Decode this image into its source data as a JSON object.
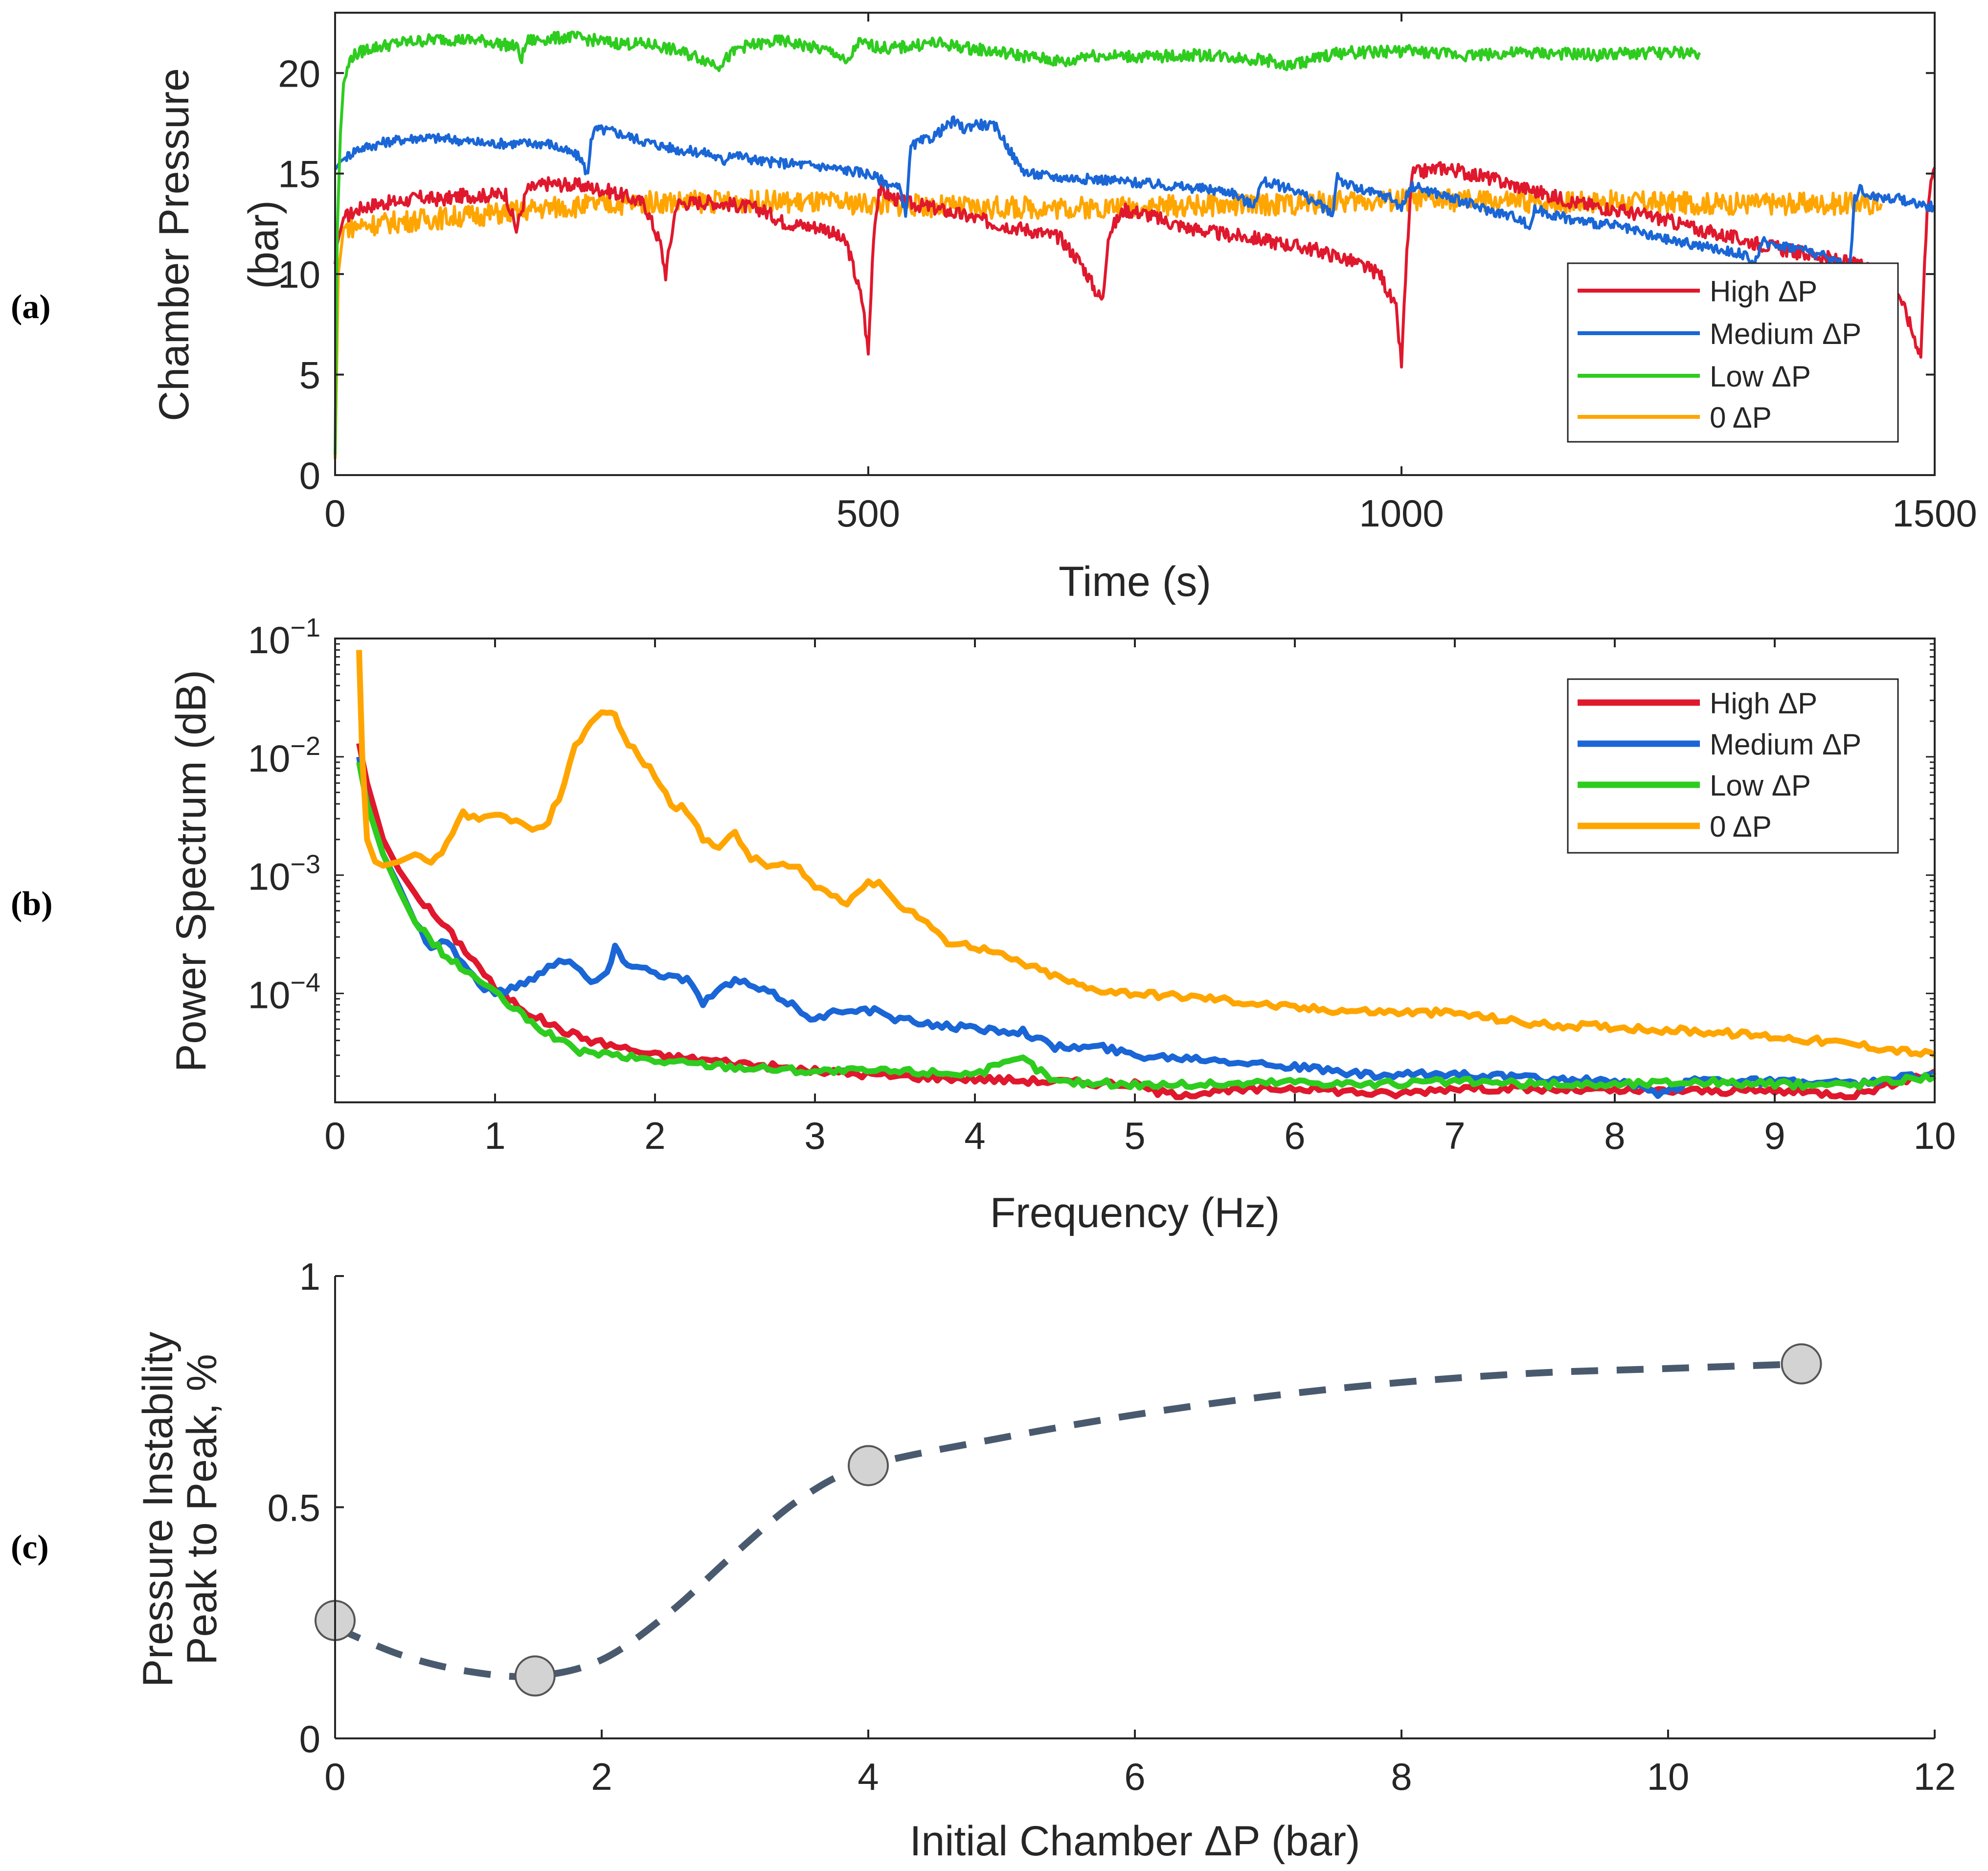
{
  "figure": {
    "panel_labels": [
      "(a)",
      "(b)",
      "(c)"
    ]
  },
  "colors": {
    "high": "#e0182d",
    "medium": "#1a66d6",
    "low": "#2ecc1f",
    "zero": "#ffa500",
    "fit": "#4a5a6e",
    "marker": "#d3d3d3"
  },
  "chart_data": [
    {
      "panel": "(a)",
      "type": "line",
      "xlabel": "Time (s)",
      "ylabel_lines": [
        "Chamber Pressure",
        "(bar)"
      ],
      "xlim": [
        0,
        1500
      ],
      "ylim": [
        0,
        23
      ],
      "xticks": [
        0,
        500,
        1000,
        1500
      ],
      "yticks": [
        0,
        5,
        10,
        15,
        20
      ],
      "legend": {
        "placement": "bottom-right",
        "entries": [
          "High ΔP",
          "Medium ΔP",
          "Low ΔP",
          "0 ΔP"
        ]
      },
      "series": [
        {
          "name": "High ΔP",
          "color_key": "high",
          "noise": 0.35,
          "x": [
            0,
            2,
            8,
            15,
            25,
            40,
            60,
            80,
            100,
            120,
            140,
            160,
            170,
            180,
            200,
            230,
            260,
            290,
            305,
            310,
            320,
            350,
            380,
            400,
            420,
            440,
            460,
            480,
            495,
            500,
            505,
            510,
            530,
            560,
            590,
            620,
            650,
            680,
            700,
            715,
            720,
            725,
            740,
            760,
            780,
            800,
            830,
            860,
            890,
            920,
            950,
            980,
            995,
            1000,
            1005,
            1010,
            1040,
            1080,
            1120,
            1160,
            1200,
            1240,
            1280,
            1320,
            1360,
            1400,
            1430,
            1460,
            1480,
            1487,
            1493,
            1500
          ],
          "y": [
            10.5,
            11.5,
            12.8,
            13.0,
            13.3,
            13.5,
            13.6,
            13.8,
            13.7,
            13.9,
            13.9,
            14.0,
            12.2,
            14.2,
            14.5,
            14.4,
            14.1,
            13.5,
            11.5,
            10.0,
            13.5,
            13.6,
            13.4,
            13.2,
            12.6,
            12.4,
            12.3,
            11.5,
            8.5,
            6.0,
            12.0,
            14.2,
            13.6,
            13.3,
            12.9,
            12.5,
            12.2,
            11.8,
            10.5,
            9.0,
            8.7,
            12.0,
            13.2,
            13.0,
            12.6,
            12.3,
            12.0,
            11.8,
            11.5,
            11.2,
            10.7,
            10.0,
            8.2,
            5.5,
            11.0,
            15.0,
            15.3,
            14.8,
            14.2,
            13.6,
            13.2,
            12.8,
            12.2,
            11.7,
            11.2,
            10.8,
            10.4,
            10.0,
            7.0,
            6.0,
            13.5,
            15.3
          ]
        },
        {
          "name": "Medium ΔP",
          "color_key": "medium",
          "noise": 0.25,
          "x": [
            0,
            5,
            20,
            50,
            80,
            110,
            140,
            170,
            200,
            230,
            237,
            240,
            245,
            260,
            290,
            320,
            350,
            365,
            370,
            400,
            450,
            500,
            530,
            535,
            540,
            545,
            560,
            580,
            590,
            600,
            620,
            640,
            645,
            650,
            680,
            720,
            760,
            800,
            840,
            860,
            870,
            900,
            930,
            935,
            940,
            945,
            960,
            990,
            1000,
            1010,
            1040,
            1080,
            1110,
            1120,
            1125,
            1160,
            1200,
            1220,
            1240,
            1270,
            1300,
            1320,
            1330,
            1340,
            1350,
            1380,
            1410,
            1420,
            1425,
            1430,
            1440,
            1470,
            1500
          ],
          "y": [
            15.2,
            15.6,
            16.2,
            16.6,
            16.8,
            16.7,
            16.5,
            16.5,
            16.5,
            15.8,
            14.9,
            16.8,
            17.2,
            17.1,
            16.6,
            16.2,
            16.0,
            15.6,
            16.0,
            15.6,
            15.4,
            15.0,
            14.2,
            13.0,
            16.3,
            16.5,
            16.8,
            17.6,
            17.2,
            17.5,
            17.3,
            15.5,
            15.2,
            15.0,
            14.8,
            14.7,
            14.5,
            14.3,
            14.1,
            13.4,
            14.6,
            14.2,
            13.2,
            12.8,
            15.0,
            14.6,
            14.2,
            13.8,
            13.3,
            14.4,
            13.9,
            13.2,
            12.8,
            12.3,
            13.2,
            12.7,
            12.4,
            12.1,
            11.8,
            11.5,
            11.2,
            11.0,
            10.5,
            11.6,
            11.5,
            11.2,
            10.6,
            10.1,
            13.8,
            14.2,
            13.9,
            13.7,
            13.3
          ]
        },
        {
          "name": "Low ΔP",
          "color_key": "low",
          "noise": 0.3,
          "x": [
            0,
            2,
            5,
            8,
            15,
            30,
            60,
            100,
            140,
            170,
            175,
            180,
            220,
            260,
            300,
            340,
            360,
            380,
            420,
            470,
            480,
            490,
            520,
            560,
            600,
            640,
            690,
            700,
            760,
            820,
            880,
            890,
            940,
            1000,
            1060,
            1120,
            1180,
            1230,
            1280
          ],
          "y": [
            1.0,
            12.0,
            17.0,
            19.5,
            20.8,
            21.2,
            21.5,
            21.7,
            21.6,
            21.3,
            20.7,
            21.6,
            21.8,
            21.5,
            21.4,
            20.8,
            20.4,
            21.3,
            21.6,
            21.0,
            20.4,
            21.5,
            21.2,
            21.5,
            21.2,
            20.9,
            20.5,
            20.9,
            20.8,
            20.9,
            20.6,
            20.3,
            21.0,
            21.1,
            20.9,
            21.0,
            20.9,
            21.0,
            21.0
          ]
        },
        {
          "name": "0 ΔP",
          "color_key": "zero",
          "noise": 0.55,
          "x": [
            0,
            3,
            8,
            20,
            60,
            100,
            150,
            200,
            300,
            400,
            500,
            600,
            700,
            800,
            900,
            1000,
            1100,
            1200,
            1300,
            1400,
            1450
          ],
          "y": [
            0.8,
            10.0,
            12.3,
            12.4,
            12.6,
            12.8,
            13.0,
            13.3,
            13.6,
            13.6,
            13.5,
            13.3,
            13.3,
            13.4,
            13.5,
            13.7,
            13.6,
            13.6,
            13.5,
            13.5,
            13.5
          ]
        }
      ]
    },
    {
      "panel": "(b)",
      "type": "line",
      "yscale": "log",
      "xlabel": "Frequency (Hz)",
      "ylabel": "Power Spectrum (dB)",
      "xlim": [
        0,
        10
      ],
      "ylim": [
        1.2e-05,
        0.1
      ],
      "xticks": [
        0,
        1,
        2,
        3,
        4,
        5,
        6,
        7,
        8,
        9,
        10
      ],
      "yticks": [
        0.0001,
        0.001,
        0.01,
        0.1
      ],
      "ytick_bases": [
        "10",
        "10",
        "10",
        "10"
      ],
      "ytick_exps": [
        "−4",
        "−3",
        "−2",
        "−1"
      ],
      "legend": {
        "placement": "top-right",
        "entries": [
          "High ΔP",
          "Medium ΔP",
          "Low ΔP",
          "0 ΔP"
        ]
      },
      "series": [
        {
          "name": "High ΔP",
          "color_key": "high",
          "x": [
            0.15,
            0.2,
            0.3,
            0.4,
            0.5,
            0.7,
            0.9,
            1.0,
            1.2,
            1.4,
            1.6,
            2.0,
            2.5,
            3.0,
            3.5,
            4.0,
            5.0,
            5.2,
            6.0,
            6.6,
            7.0,
            8.0,
            9.0,
            9.5,
            10.0
          ],
          "y": [
            0.013,
            0.006,
            0.002,
            0.0011,
            0.0007,
            0.00035,
            0.00017,
            0.00011,
            7e-05,
            5e-05,
            4e-05,
            3e-05,
            2.6e-05,
            2.2e-05,
            2e-05,
            1.9e-05,
            1.7e-05,
            1.4e-05,
            1.6e-05,
            1.4e-05,
            1.6e-05,
            1.5e-05,
            1.5e-05,
            1.4e-05,
            2.2e-05
          ]
        },
        {
          "name": "Medium ΔP",
          "color_key": "medium",
          "x": [
            0.15,
            0.2,
            0.3,
            0.4,
            0.5,
            0.6,
            0.7,
            0.8,
            0.9,
            1.0,
            1.1,
            1.3,
            1.4,
            1.5,
            1.6,
            1.7,
            1.75,
            1.8,
            2.0,
            2.2,
            2.3,
            2.5,
            2.8,
            3.0,
            3.2,
            3.4,
            3.5,
            4.0,
            4.3,
            4.5,
            4.8,
            5.0,
            5.5,
            6.0,
            6.5,
            7.0,
            7.5,
            8.0,
            8.3,
            8.5,
            9.0,
            9.5,
            10.0
          ],
          "y": [
            0.01,
            0.004,
            0.0015,
            0.0008,
            0.0004,
            0.00025,
            0.00028,
            0.00018,
            0.00012,
            0.0001,
            0.00011,
            0.00015,
            0.0002,
            0.00018,
            0.00012,
            0.00015,
            0.00024,
            0.00019,
            0.00015,
            0.00013,
            8.5e-05,
            0.00013,
            9e-05,
            6e-05,
            7.5e-05,
            7e-05,
            6e-05,
            5e-05,
            4.8e-05,
            3.5e-05,
            3.5e-05,
            3e-05,
            2.8e-05,
            2.4e-05,
            2e-05,
            2.1e-05,
            1.9e-05,
            1.8e-05,
            1.4e-05,
            1.9e-05,
            1.8e-05,
            1.7e-05,
            2.1e-05
          ]
        },
        {
          "name": "Low ΔP",
          "color_key": "low",
          "x": [
            0.15,
            0.2,
            0.3,
            0.4,
            0.5,
            0.7,
            0.9,
            1.0,
            1.2,
            1.4,
            1.5,
            2.0,
            2.5,
            3.0,
            3.5,
            4.0,
            4.3,
            4.5,
            5.0,
            5.5,
            6.0,
            6.5,
            7.0,
            7.5,
            8.0,
            8.5,
            9.0,
            9.5,
            10.0
          ],
          "y": [
            0.009,
            0.004,
            0.0015,
            0.00075,
            0.0004,
            0.0002,
            0.00013,
            0.0001,
            6e-05,
            4e-05,
            3.3e-05,
            2.7e-05,
            2.4e-05,
            2.2e-05,
            2.2e-05,
            2.1e-05,
            2.8e-05,
            1.8e-05,
            1.7e-05,
            1.7e-05,
            1.8e-05,
            1.7e-05,
            1.8e-05,
            1.7e-05,
            1.7e-05,
            1.8e-05,
            1.7e-05,
            1.7e-05,
            2e-05
          ]
        },
        {
          "name": "0 ΔP",
          "color_key": "zero",
          "x": [
            0.15,
            0.17,
            0.2,
            0.25,
            0.3,
            0.4,
            0.5,
            0.6,
            0.7,
            0.8,
            0.9,
            1.0,
            1.1,
            1.2,
            1.3,
            1.4,
            1.5,
            1.6,
            1.7,
            1.75,
            1.8,
            1.9,
            2.0,
            2.1,
            2.2,
            2.3,
            2.4,
            2.5,
            2.6,
            2.7,
            2.8,
            2.9,
            3.0,
            3.1,
            3.2,
            3.3,
            3.4,
            3.5,
            3.7,
            3.8,
            4.0,
            4.2,
            4.5,
            4.7,
            5.0,
            5.5,
            6.0,
            6.5,
            7.0,
            7.5,
            8.0,
            8.5,
            9.0,
            9.5,
            10.0
          ],
          "y": [
            0.08,
            0.01,
            0.002,
            0.0013,
            0.0012,
            0.0013,
            0.0015,
            0.0012,
            0.0018,
            0.0035,
            0.0028,
            0.0032,
            0.003,
            0.0025,
            0.0024,
            0.0045,
            0.012,
            0.02,
            0.025,
            0.022,
            0.015,
            0.01,
            0.007,
            0.004,
            0.0035,
            0.002,
            0.0018,
            0.0022,
            0.0014,
            0.0012,
            0.0012,
            0.0011,
            0.0008,
            0.0007,
            0.0006,
            0.0008,
            0.0009,
            0.0006,
            0.0004,
            0.00028,
            0.00025,
            0.0002,
            0.00014,
            0.00011,
            0.0001,
            9e-05,
            7.5e-05,
            7e-05,
            6.8e-05,
            5.5e-05,
            5.2e-05,
            4.8e-05,
            4.3e-05,
            3.7e-05,
            3e-05
          ]
        }
      ]
    },
    {
      "panel": "(c)",
      "type": "scatter",
      "xlabel": "Initial Chamber ΔP (bar)",
      "ylabel_lines": [
        "Pressure Instability",
        "Peak to Peak, %"
      ],
      "xlim": [
        0,
        12
      ],
      "ylim": [
        0,
        1
      ],
      "xticks": [
        0,
        2,
        4,
        6,
        8,
        10,
        12
      ],
      "yticks": [
        0,
        0.5,
        1
      ],
      "points": {
        "x": [
          0,
          1.5,
          4,
          11
        ],
        "y": [
          0.255,
          0.135,
          0.59,
          0.81
        ]
      },
      "fit": {
        "style": "dashed",
        "x": [
          0,
          0.5,
          1.0,
          1.5,
          2.0,
          2.5,
          3.0,
          3.5,
          4.0,
          5.0,
          6.0,
          7.0,
          8.0,
          9.0,
          10.0,
          11.0
        ],
        "y": [
          0.24,
          0.18,
          0.145,
          0.135,
          0.17,
          0.27,
          0.4,
          0.52,
          0.59,
          0.65,
          0.7,
          0.74,
          0.77,
          0.79,
          0.8,
          0.81
        ]
      }
    }
  ]
}
